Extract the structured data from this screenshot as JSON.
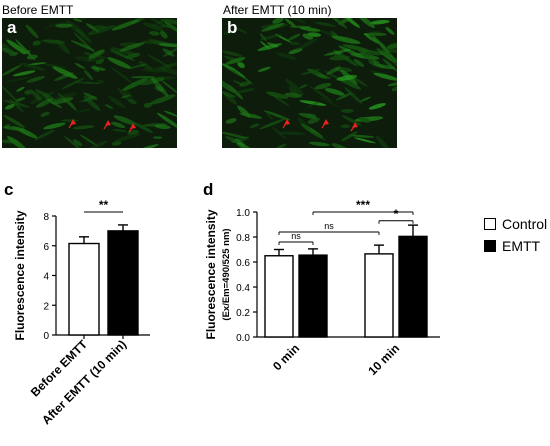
{
  "images": [
    {
      "id": "a",
      "title": "Before EMTT",
      "letter": "a"
    },
    {
      "id": "b",
      "title": "After EMTT (10 min)",
      "letter": "b"
    }
  ],
  "colors": {
    "control": "#ffffff",
    "emtt": "#000000",
    "arrow": "#e8231f",
    "cell": "#3fbf3a"
  },
  "chart_data": [
    {
      "panel": "c",
      "type": "bar",
      "categories": [
        "Before EMTT",
        "After EMTT (10 min)"
      ],
      "values": [
        6.15,
        7.0
      ],
      "errors": [
        0.45,
        0.4
      ],
      "bar_colors": [
        "#ffffff",
        "#000000"
      ],
      "ylabel": "Fluorescence intensity",
      "ylim": [
        0,
        8
      ],
      "yticks": [
        0,
        2,
        4,
        6,
        8
      ],
      "significance": [
        {
          "from": 0,
          "to": 1,
          "label": "**"
        }
      ]
    },
    {
      "panel": "d",
      "type": "bar",
      "categories": [
        "0 min",
        "10 min"
      ],
      "series": [
        {
          "name": "Control",
          "values": [
            0.65,
            0.665
          ],
          "errors": [
            0.05,
            0.07
          ],
          "color": "#ffffff"
        },
        {
          "name": "EMTT",
          "values": [
            0.655,
            0.805
          ],
          "errors": [
            0.05,
            0.09
          ],
          "color": "#000000"
        }
      ],
      "ylabel": "Fluorescence intensity",
      "ylabel2": "(Ex/Em=490/525 nm)",
      "ylim": [
        0,
        1.0
      ],
      "yticks": [
        0.0,
        0.2,
        0.4,
        0.6,
        0.8,
        1.0
      ],
      "legend_position": "right",
      "significance": [
        {
          "from": "0 min Control",
          "to": "0 min EMTT",
          "label": "ns"
        },
        {
          "from": "0 min Control",
          "to": "10 min Control",
          "label": "ns"
        },
        {
          "from": "10 min Control",
          "to": "10 min EMTT",
          "label": "*"
        },
        {
          "from": "0 min EMTT",
          "to": "10 min EMTT",
          "label": "***"
        }
      ]
    }
  ]
}
